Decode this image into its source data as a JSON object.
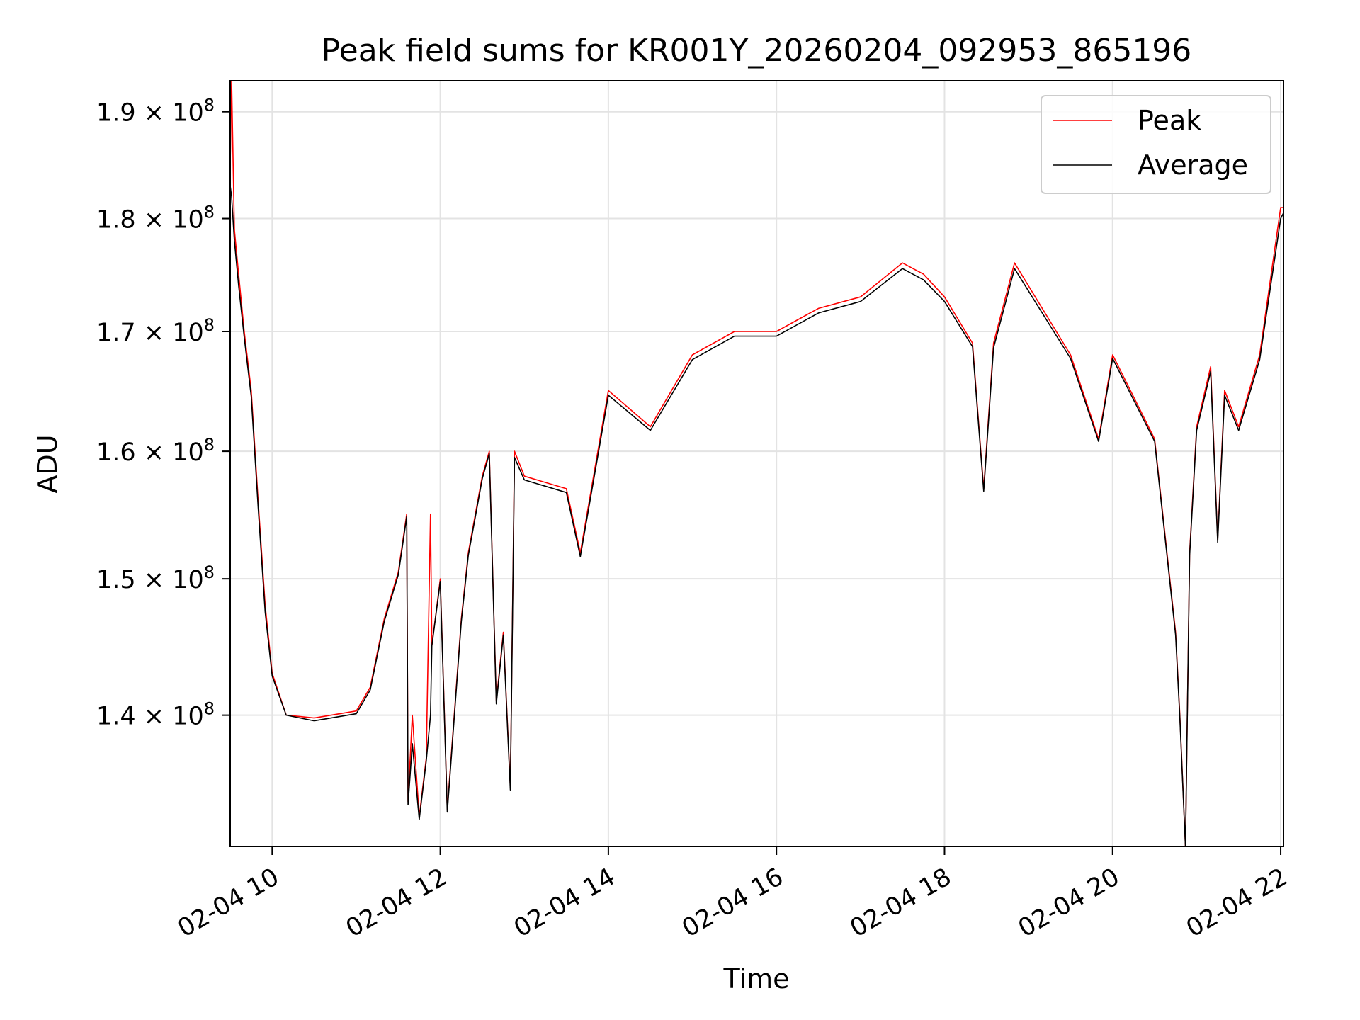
{
  "chart_data": {
    "type": "line",
    "title": "Peak field sums for KR001Y_20260204_092953_865196",
    "xlabel": "Time",
    "ylabel": "ADU",
    "y_scale": "log",
    "grid": true,
    "legend_position": "top-right",
    "xlim": [
      "2026-02-04 09:30",
      "2026-02-04 22:02"
    ],
    "ylim": [
      131000000,
      193000000
    ],
    "x_ticks": [
      "2026-02-04 10:00",
      "2026-02-04 12:00",
      "2026-02-04 14:00",
      "2026-02-04 16:00",
      "2026-02-04 18:00",
      "2026-02-04 20:00",
      "2026-02-04 22:00"
    ],
    "x_tick_labels": [
      "02-04 10",
      "02-04 12",
      "02-04 14",
      "02-04 16",
      "02-04 18",
      "02-04 20",
      "02-04 22"
    ],
    "y_ticks": [
      140000000,
      150000000,
      160000000,
      170000000,
      180000000,
      190000000
    ],
    "y_tick_mantissas": [
      "1.4",
      "1.5",
      "1.6",
      "1.7",
      "1.8",
      "1.9"
    ],
    "y_tick_multiplier": "×",
    "y_tick_base": "10",
    "y_tick_exponent": "8",
    "series": [
      {
        "name": "Peak",
        "color": "#ff0000",
        "x": [
          "2026-02-04 09:30",
          "2026-02-04 09:31",
          "2026-02-04 09:33",
          "2026-02-04 09:36",
          "2026-02-04 09:40",
          "2026-02-04 09:45",
          "2026-02-04 09:50",
          "2026-02-04 09:55",
          "2026-02-04 10:00",
          "2026-02-04 10:10",
          "2026-02-04 10:30",
          "2026-02-04 11:00",
          "2026-02-04 11:10",
          "2026-02-04 11:20",
          "2026-02-04 11:30",
          "2026-02-04 11:36",
          "2026-02-04 11:37",
          "2026-02-04 11:40",
          "2026-02-04 11:45",
          "2026-02-04 11:50",
          "2026-02-04 11:53",
          "2026-02-04 11:54",
          "2026-02-04 12:00",
          "2026-02-04 12:05",
          "2026-02-04 12:15",
          "2026-02-04 12:20",
          "2026-02-04 12:30",
          "2026-02-04 12:35",
          "2026-02-04 12:40",
          "2026-02-04 12:45",
          "2026-02-04 12:50",
          "2026-02-04 12:53",
          "2026-02-04 13:00",
          "2026-02-04 13:30",
          "2026-02-04 13:40",
          "2026-02-04 14:00",
          "2026-02-04 14:30",
          "2026-02-04 15:00",
          "2026-02-04 15:30",
          "2026-02-04 16:00",
          "2026-02-04 16:30",
          "2026-02-04 17:00",
          "2026-02-04 17:30",
          "2026-02-04 17:45",
          "2026-02-04 18:00",
          "2026-02-04 18:20",
          "2026-02-04 18:28",
          "2026-02-04 18:35",
          "2026-02-04 18:50",
          "2026-02-04 19:30",
          "2026-02-04 19:50",
          "2026-02-04 20:00",
          "2026-02-04 20:30",
          "2026-02-04 20:45",
          "2026-02-04 20:48",
          "2026-02-04 20:52",
          "2026-02-04 20:55",
          "2026-02-04 21:00",
          "2026-02-04 21:10",
          "2026-02-04 21:15",
          "2026-02-04 21:20",
          "2026-02-04 21:30",
          "2026-02-04 21:45",
          "2026-02-04 22:00",
          "2026-02-04 22:02"
        ],
        "values": [
          185000000,
          193000000,
          179000000,
          175000000,
          170000000,
          165000000,
          156000000,
          148000000,
          143000000,
          140000000,
          139800000,
          140300000,
          142000000,
          147000000,
          150500000,
          155000000,
          134000000,
          140000000,
          133000000,
          137000000,
          155000000,
          145000000,
          150000000,
          133500000,
          147000000,
          152000000,
          158000000,
          160000000,
          141000000,
          146000000,
          135000000,
          160000000,
          158000000,
          157000000,
          152000000,
          165000000,
          162000000,
          168000000,
          170000000,
          170000000,
          172000000,
          173000000,
          176000000,
          175000000,
          173000000,
          169000000,
          157000000,
          169000000,
          176000000,
          168000000,
          161000000,
          168000000,
          161000000,
          146000000,
          140000000,
          131000000,
          152000000,
          162000000,
          167000000,
          153000000,
          165000000,
          162000000,
          168000000,
          181000000,
          181000000
        ]
      },
      {
        "name": "Average",
        "color": "#000000",
        "x": [
          "2026-02-04 09:30",
          "2026-02-04 09:31",
          "2026-02-04 09:33",
          "2026-02-04 09:36",
          "2026-02-04 09:40",
          "2026-02-04 09:45",
          "2026-02-04 09:50",
          "2026-02-04 09:55",
          "2026-02-04 10:00",
          "2026-02-04 10:10",
          "2026-02-04 10:30",
          "2026-02-04 11:00",
          "2026-02-04 11:10",
          "2026-02-04 11:20",
          "2026-02-04 11:30",
          "2026-02-04 11:36",
          "2026-02-04 11:37",
          "2026-02-04 11:40",
          "2026-02-04 11:45",
          "2026-02-04 11:50",
          "2026-02-04 11:53",
          "2026-02-04 11:54",
          "2026-02-04 12:00",
          "2026-02-04 12:05",
          "2026-02-04 12:15",
          "2026-02-04 12:20",
          "2026-02-04 12:30",
          "2026-02-04 12:35",
          "2026-02-04 12:40",
          "2026-02-04 12:45",
          "2026-02-04 12:50",
          "2026-02-04 12:53",
          "2026-02-04 13:00",
          "2026-02-04 13:30",
          "2026-02-04 13:40",
          "2026-02-04 14:00",
          "2026-02-04 14:30",
          "2026-02-04 15:00",
          "2026-02-04 15:30",
          "2026-02-04 16:00",
          "2026-02-04 16:30",
          "2026-02-04 17:00",
          "2026-02-04 17:30",
          "2026-02-04 17:45",
          "2026-02-04 18:00",
          "2026-02-04 18:20",
          "2026-02-04 18:28",
          "2026-02-04 18:35",
          "2026-02-04 18:50",
          "2026-02-04 19:30",
          "2026-02-04 19:50",
          "2026-02-04 20:00",
          "2026-02-04 20:30",
          "2026-02-04 20:45",
          "2026-02-04 20:48",
          "2026-02-04 20:52",
          "2026-02-04 20:55",
          "2026-02-04 21:00",
          "2026-02-04 21:10",
          "2026-02-04 21:15",
          "2026-02-04 21:20",
          "2026-02-04 21:30",
          "2026-02-04 21:45",
          "2026-02-04 22:00",
          "2026-02-04 22:02"
        ],
        "values": [
          183000000,
          182000000,
          178000000,
          174000000,
          169500000,
          164500000,
          155500000,
          147500000,
          142800000,
          140000000,
          139600000,
          140100000,
          141800000,
          146800000,
          150300000,
          154800000,
          133800000,
          138000000,
          132800000,
          136800000,
          140000000,
          145000000,
          149800000,
          133300000,
          146800000,
          151800000,
          157800000,
          159800000,
          140800000,
          145800000,
          134800000,
          159500000,
          157700000,
          156700000,
          151700000,
          164600000,
          161700000,
          167600000,
          169600000,
          169600000,
          171600000,
          172600000,
          175500000,
          174500000,
          172600000,
          168700000,
          156800000,
          168600000,
          175500000,
          167700000,
          160800000,
          167700000,
          160800000,
          145800000,
          139800000,
          131000000,
          151800000,
          161700000,
          166600000,
          152800000,
          164600000,
          161700000,
          167600000,
          180000000,
          180500000
        ]
      }
    ]
  }
}
